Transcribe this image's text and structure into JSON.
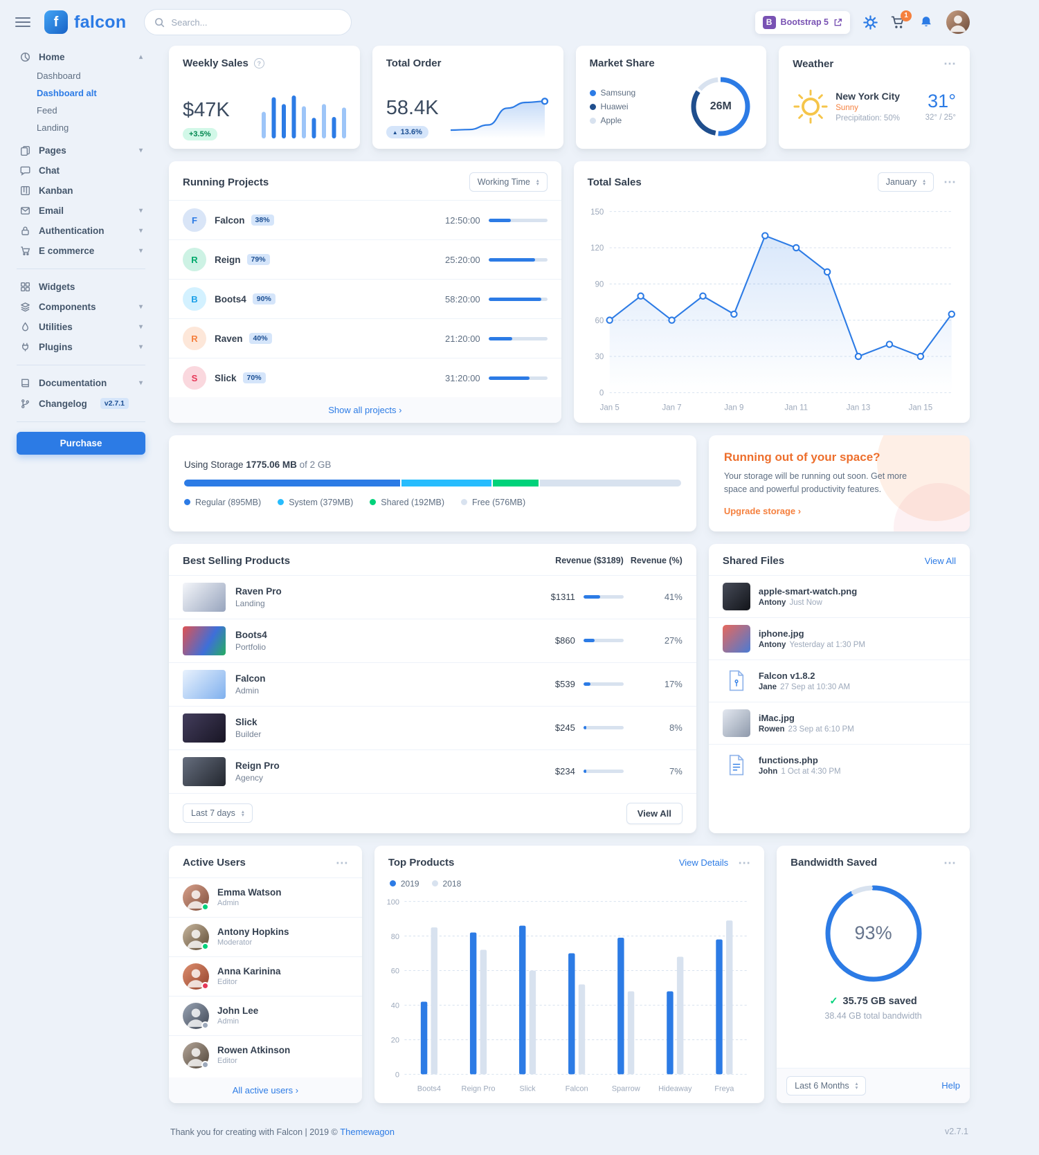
{
  "theme": {
    "primary": "#2c7be5",
    "success": "#00d27a",
    "warning": "#f5803e",
    "danger": "#e63757",
    "info": "#27bcfd",
    "background": "#edf2f9",
    "muted": "#9da9bb",
    "badge_purple": "#7952b3"
  },
  "icons": {
    "caret_up": "▴",
    "caret_down": "▾",
    "dots_menu": "⋯",
    "chevron_right": "›",
    "check": "✓",
    "arrow_up": "▲",
    "question": "?"
  },
  "topbar": {
    "logo_text": "falcon",
    "search_placeholder": "Search...",
    "bootstrap_badge_initial": "B",
    "bootstrap_badge_label": "Bootstrap 5",
    "cart_count": "1"
  },
  "sidebar": {
    "home": "Home",
    "home_children": {
      "dashboard": "Dashboard",
      "dashboard_alt": "Dashboard alt",
      "feed": "Feed",
      "landing": "Landing"
    },
    "pages": "Pages",
    "chat": "Chat",
    "kanban": "Kanban",
    "email": "Email",
    "authentication": "Authentication",
    "ecommerce": "E commerce",
    "widgets": "Widgets",
    "components": "Components",
    "utilities": "Utilities",
    "plugins": "Plugins",
    "documentation": "Documentation",
    "changelog": "Changelog",
    "changelog_badge": "v2.7.1",
    "purchase_label": "Purchase"
  },
  "cards": {
    "weekly_sales": {
      "title": "Weekly Sales",
      "value": "$47K",
      "badge": "+3.5%",
      "chart": {
        "type": "bar",
        "values": [
          62,
          96,
          80,
          100,
          75,
          48,
          80,
          50,
          72
        ],
        "max": 100,
        "colors": [
          "#9dc5f8",
          "#2c7be5",
          "#2c7be5",
          "#2c7be5",
          "#9dc5f8",
          "#2c7be5",
          "#9dc5f8",
          "#2c7be5",
          "#9dc5f8"
        ]
      }
    },
    "total_order": {
      "title": "Total Order",
      "value": "58.4K",
      "badge": "13.6%",
      "chart": {
        "type": "line",
        "values": [
          12,
          14,
          30,
          88,
          108,
          112
        ],
        "max": 120,
        "color": "#2c7be5"
      }
    },
    "market_share": {
      "title": "Market Share",
      "center": "26M",
      "segments": [
        {
          "label": "Samsung",
          "value": 53,
          "color": "#2c7be5"
        },
        {
          "label": "Huawei",
          "value": 33,
          "color": "#1f4e8d"
        },
        {
          "label": "Apple",
          "value": 14,
          "color": "#d8e2ef"
        }
      ]
    },
    "weather": {
      "title": "Weather",
      "city": "New York City",
      "condition": "Sunny",
      "precipitation": "Precipitation: 50%",
      "temp": "31°",
      "high_low": "32° / 25°"
    },
    "running_projects": {
      "title": "Running Projects",
      "select_label": "Working Time",
      "footer_link": "Show all projects",
      "rows": [
        {
          "initial": "F",
          "name": "Falcon",
          "badge": "38%",
          "time": "12:50:00",
          "progress": 38,
          "avatar_bg": "#d9e5f7",
          "avatar_color": "#2c7be5"
        },
        {
          "initial": "R",
          "name": "Reign",
          "badge": "79%",
          "time": "25:20:00",
          "progress": 79,
          "avatar_bg": "#cdf2e4",
          "avatar_color": "#00a96c"
        },
        {
          "initial": "B",
          "name": "Boots4",
          "badge": "90%",
          "time": "58:20:00",
          "progress": 90,
          "avatar_bg": "#d3f1ff",
          "avatar_color": "#1ba0e8"
        },
        {
          "initial": "R",
          "name": "Raven",
          "badge": "40%",
          "time": "21:20:00",
          "progress": 40,
          "avatar_bg": "#fde7d9",
          "avatar_color": "#f5803e"
        },
        {
          "initial": "S",
          "name": "Slick",
          "badge": "70%",
          "time": "31:20:00",
          "progress": 70,
          "avatar_bg": "#fad8de",
          "avatar_color": "#e63757"
        }
      ]
    },
    "total_sales": {
      "title": "Total Sales",
      "select_label": "January",
      "chart": {
        "type": "line",
        "x_labels": [
          "Jan 5",
          "Jan 7",
          "Jan 9",
          "Jan 11",
          "Jan 13",
          "Jan 15"
        ],
        "values": [
          60,
          80,
          60,
          80,
          65,
          130,
          120,
          100,
          30,
          40,
          30,
          65
        ],
        "y_ticks": [
          0,
          30,
          60,
          90,
          120,
          150
        ],
        "y_max": 150,
        "color": "#2c7be5"
      }
    },
    "storage": {
      "label_prefix": "Using Storage",
      "used": "1775.06 MB",
      "label_suffix": "of 2 GB",
      "segments": [
        {
          "label": "Regular (895MB)",
          "pct": 43.7,
          "color": "#2c7be5"
        },
        {
          "label": "System (379MB)",
          "pct": 18.5,
          "color": "#27bcfd"
        },
        {
          "label": "Shared (192MB)",
          "pct": 9.4,
          "color": "#00d27a"
        },
        {
          "label": "Free (576MB)",
          "pct": 28.4,
          "color": "#d8e2ef"
        }
      ]
    },
    "space": {
      "title": "Running out of your space?",
      "body": "Your storage will be running out soon. Get more space and powerful productivity features.",
      "link_label": "Upgrade storage"
    },
    "best_selling": {
      "title": "Best Selling Products",
      "col_revenue": "Revenue ($3189)",
      "col_percent": "Revenue (%)",
      "select_label": "Last 7 days",
      "view_all_label": "View All",
      "rows": [
        {
          "name": "Raven Pro",
          "category": "Landing",
          "revenue": "$1311",
          "percent": "41%",
          "progress": 41,
          "thumb": "linear-gradient(135deg,#f4f6fa 0%,#97a4bd 100%)"
        },
        {
          "name": "Boots4",
          "category": "Portfolio",
          "revenue": "$860",
          "percent": "27%",
          "progress": 27,
          "thumb": "linear-gradient(120deg,#e05252 0%,#3e6fd9 60%,#27ae60 100%)"
        },
        {
          "name": "Falcon",
          "category": "Admin",
          "revenue": "$539",
          "percent": "17%",
          "progress": 17,
          "thumb": "linear-gradient(135deg,#e9f2fd 0%,#7fb0ee 100%)"
        },
        {
          "name": "Slick",
          "category": "Builder",
          "revenue": "$245",
          "percent": "8%",
          "progress": 8,
          "thumb": "linear-gradient(135deg,#433d5c 0%,#181524 100%)"
        },
        {
          "name": "Reign Pro",
          "category": "Agency",
          "revenue": "$234",
          "percent": "7%",
          "progress": 7,
          "thumb": "linear-gradient(135deg,#666e7e 0%,#22262e 100%)"
        }
      ]
    },
    "shared_files": {
      "title": "Shared Files",
      "view_all_label": "View All",
      "files": [
        {
          "name": "apple-smart-watch.png",
          "by": "Antony",
          "time": "Just Now",
          "kind": "image",
          "thumb": "linear-gradient(135deg,#474c59 0%,#121419 100%)"
        },
        {
          "name": "iphone.jpg",
          "by": "Antony",
          "time": "Yesterday at 1:30 PM",
          "kind": "image",
          "thumb": "linear-gradient(135deg,#e8685c 0%,#4a7bd4 100%)"
        },
        {
          "name": "Falcon v1.8.2",
          "by": "Jane",
          "time": "27 Sep at 10:30 AM",
          "kind": "file"
        },
        {
          "name": "iMac.jpg",
          "by": "Rowen",
          "time": "23 Sep at 6:10 PM",
          "kind": "image",
          "thumb": "linear-gradient(135deg,#e3e8f0 0%,#8e99ab 100%)"
        },
        {
          "name": "functions.php",
          "by": "John",
          "time": "1 Oct at 4:30 PM",
          "kind": "file"
        }
      ]
    },
    "active_users": {
      "title": "Active Users",
      "footer_link": "All active users",
      "users": [
        {
          "name": "Emma Watson",
          "role": "Admin",
          "status_color": "#00d27a",
          "gradient": "linear-gradient(135deg,#d9a18c,#7e4e3b)"
        },
        {
          "name": "Antony Hopkins",
          "role": "Moderator",
          "status_color": "#00d27a",
          "gradient": "linear-gradient(135deg,#c9b8a0,#5d4a33)"
        },
        {
          "name": "Anna Karinina",
          "role": "Editor",
          "status_color": "#e63757",
          "gradient": "linear-gradient(135deg,#de9070,#93402a)"
        },
        {
          "name": "John Lee",
          "role": "Admin",
          "status_color": "#9da9bb",
          "gradient": "linear-gradient(135deg,#9aa5b5,#3e4654)"
        },
        {
          "name": "Rowen Atkinson",
          "role": "Editor",
          "status_color": "#9da9bb",
          "gradient": "linear-gradient(135deg,#b5a79a,#4f4438)"
        }
      ]
    },
    "top_products": {
      "title": "Top Products",
      "view_details_label": "View Details",
      "chart": {
        "type": "bar",
        "categories": [
          "Boots4",
          "Reign Pro",
          "Slick",
          "Falcon",
          "Sparrow",
          "Hideaway",
          "Freya"
        ],
        "series": [
          {
            "name": "2019",
            "color": "#2c7be5",
            "values": [
              42,
              82,
              86,
              70,
              79,
              48,
              78
            ]
          },
          {
            "name": "2018",
            "color": "#d8e2ef",
            "values": [
              85,
              72,
              60,
              52,
              48,
              68,
              89
            ]
          }
        ],
        "y_ticks": [
          0,
          20,
          40,
          60,
          80,
          100
        ],
        "y_max": 100
      }
    },
    "bandwidth": {
      "title": "Bandwidth Saved",
      "percent": 93,
      "percent_label": "93%",
      "saved_label": "35.75 GB saved",
      "total_label": "38.44 GB total bandwidth",
      "select_label": "Last 6 Months",
      "help_label": "Help"
    }
  },
  "footer": {
    "left": "Thank you for creating with Falcon | 2019 ©",
    "brand": "Themewagon",
    "version": "v2.7.1"
  }
}
